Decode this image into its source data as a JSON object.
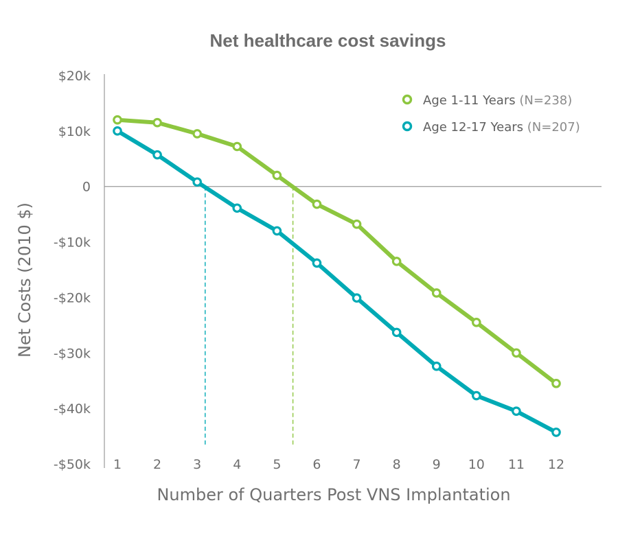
{
  "chart_data": {
    "type": "line",
    "title": "Net healthcare cost savings",
    "xlabel": "Number of Quarters Post VNS Implantation",
    "ylabel": "Net Costs (2010 $)",
    "x": [
      1,
      2,
      3,
      4,
      5,
      6,
      7,
      8,
      9,
      10,
      11,
      12
    ],
    "x_tick_labels": [
      "1",
      "2",
      "3",
      "4",
      "5",
      "6",
      "7",
      "8",
      "9",
      "10",
      "11",
      "12"
    ],
    "ylim": [
      -50000,
      20000
    ],
    "y_ticks": [
      20000,
      10000,
      0,
      -10000,
      -20000,
      -30000,
      -40000,
      -50000
    ],
    "y_tick_labels": [
      "$20k",
      "$10k",
      "0",
      "-$10k",
      "-$20k",
      "-$30k",
      "-$40k",
      "-$50k"
    ],
    "series": [
      {
        "name": "Age 1-11 Years",
        "n_label": "(N=238)",
        "color": "#8dc63f",
        "values": [
          12000,
          11500,
          9500,
          7200,
          2000,
          -3200,
          -6800,
          -13500,
          -19200,
          -24500,
          -30000,
          -35500
        ]
      },
      {
        "name": "Age 12-17 Years",
        "n_label": "(N=207)",
        "color": "#00aab5",
        "values": [
          10000,
          5700,
          800,
          -3900,
          -8000,
          -13800,
          -20100,
          -26300,
          -32400,
          -37700,
          -40500,
          -44300
        ]
      }
    ],
    "annotations": [
      {
        "type": "vline",
        "x": 3.2,
        "from_y": 0,
        "to_y": -46500,
        "color": "#00aab5",
        "dashed": true
      },
      {
        "type": "vline",
        "x": 5.4,
        "from_y": 0,
        "to_y": -46500,
        "color": "#8dc63f",
        "dashed": true
      }
    ],
    "zero_line": true,
    "grid": false,
    "legend_position": "top-right"
  }
}
